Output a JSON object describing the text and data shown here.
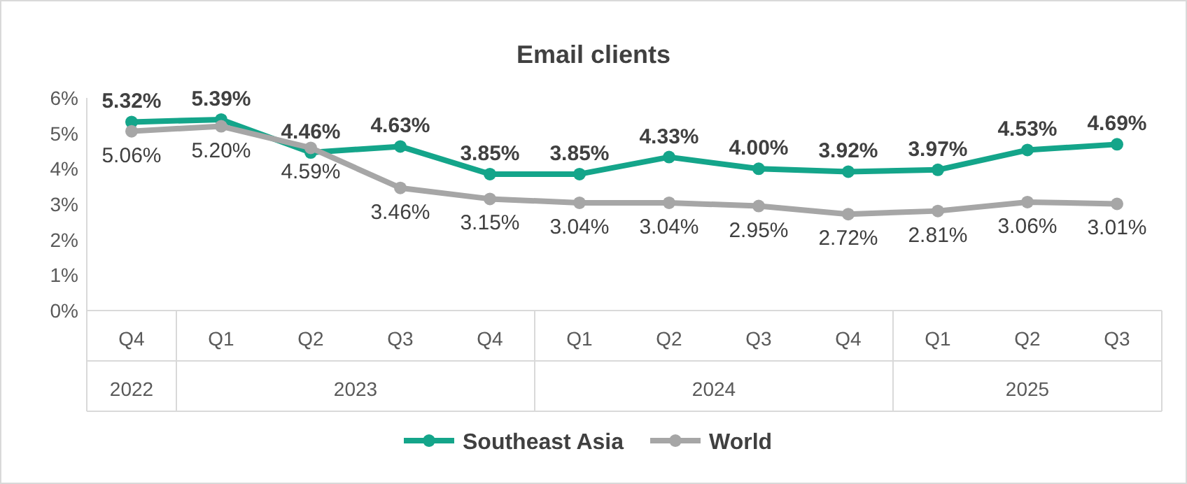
{
  "chart_data": {
    "type": "line",
    "title": "Email clients",
    "categories": [
      "Q4",
      "Q1",
      "Q2",
      "Q3",
      "Q4",
      "Q1",
      "Q2",
      "Q3",
      "Q4",
      "Q1",
      "Q2",
      "Q3"
    ],
    "annotations": [
      "2022",
      "2023",
      "2024",
      "2025"
    ],
    "ylim": [
      0,
      6
    ],
    "yticks": [
      {
        "value": 0,
        "label": "0%"
      },
      {
        "value": 1,
        "label": "1%"
      },
      {
        "value": 2,
        "label": "2%"
      },
      {
        "value": 3,
        "label": "3%"
      },
      {
        "value": 4,
        "label": "4%"
      },
      {
        "value": 5,
        "label": "5%"
      },
      {
        "value": 6,
        "label": "6%"
      }
    ],
    "grid": false,
    "legend": "bottom",
    "marker": "circle",
    "line_style": "solid",
    "series": [
      {
        "name": "Southeast Asia",
        "color": "#14a58a",
        "values": [
          5.32,
          5.39,
          4.46,
          4.63,
          3.85,
          3.85,
          4.33,
          4.0,
          3.92,
          3.97,
          4.53,
          4.69
        ],
        "value_labels": [
          "5.32%",
          "5.39%",
          "4.46%",
          "4.63%",
          "3.85%",
          "3.85%",
          "4.33%",
          "4.00%",
          "3.92%",
          "3.97%",
          "4.53%",
          "4.69%"
        ]
      },
      {
        "name": "World",
        "color": "#a6a6a6",
        "values": [
          5.06,
          5.2,
          4.59,
          3.46,
          3.15,
          3.04,
          3.04,
          2.95,
          2.72,
          2.81,
          3.06,
          3.01
        ],
        "value_labels": [
          "5.06%",
          "5.20%",
          "4.59%",
          "3.46%",
          "3.15%",
          "3.04%",
          "3.04%",
          "2.95%",
          "2.72%",
          "2.81%",
          "3.06%",
          "3.01%"
        ]
      }
    ]
  }
}
